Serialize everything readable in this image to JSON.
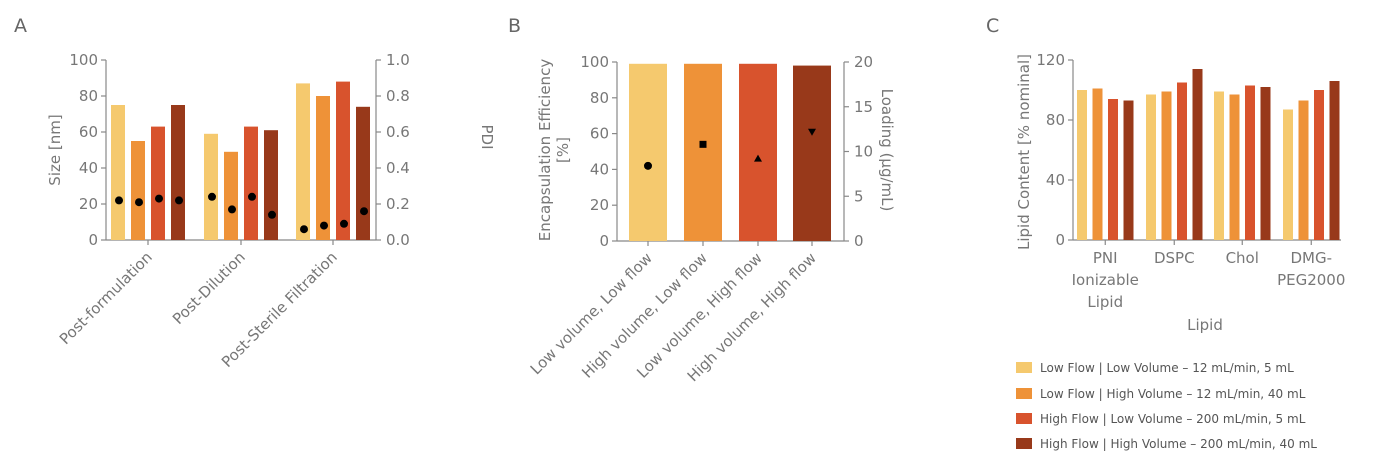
{
  "colors": [
    "#F5C96E",
    "#EE9238",
    "#D8532D",
    "#98391A"
  ],
  "legend": [
    "Low Flow | Low Volume – 12 mL/min, 5 mL",
    "Low Flow | High Volume – 12 mL/min, 40 mL",
    "High Flow | Low Volume – 200 mL/min, 5 mL",
    "High Flow | High Volume – 200 mL/min, 40 mL"
  ],
  "chart_data": [
    {
      "panel": "A",
      "type": "bar",
      "categories": [
        "Post-formulation",
        "Post-Dilution",
        "Post-Sterile Filtration"
      ],
      "ylabel": "Size [nm]",
      "ylim": [
        0,
        100
      ],
      "yticks": [
        "0",
        "20",
        "40",
        "60",
        "80",
        "100"
      ],
      "y2label": "PDI",
      "y2lim": [
        0,
        1.0
      ],
      "y2ticks": [
        "0.0",
        "0.2",
        "0.4",
        "0.6",
        "0.8",
        "1.0"
      ],
      "series": [
        {
          "values": [
            75,
            59,
            87
          ],
          "pdi": [
            0.22,
            0.24,
            0.06
          ]
        },
        {
          "values": [
            55,
            49,
            80
          ],
          "pdi": [
            0.21,
            0.17,
            0.08
          ]
        },
        {
          "values": [
            63,
            63,
            88
          ],
          "pdi": [
            0.23,
            0.24,
            0.09
          ]
        },
        {
          "values": [
            75,
            61,
            74
          ],
          "pdi": [
            0.22,
            0.14,
            0.16
          ]
        }
      ]
    },
    {
      "panel": "B",
      "type": "bar",
      "categories": [
        "Low volume, Low flow",
        "High volume, Low flow",
        "Low volume, High flow",
        "High volume, High flow"
      ],
      "values": [
        99,
        99,
        99,
        98
      ],
      "ylabel": "Encapsulation Efficiency [%]",
      "ylabel_lines": [
        "Encapsulation Efficiency",
        "[%]"
      ],
      "ylim": [
        0,
        100
      ],
      "yticks": [
        "0",
        "20",
        "40",
        "60",
        "80",
        "100"
      ],
      "y2label": "Loading (µg/mL)",
      "y2lim": [
        0,
        20
      ],
      "y2ticks": [
        "0",
        "5",
        "10",
        "15",
        "20"
      ],
      "loading": [
        8.4,
        10.8,
        9.2,
        12.2
      ],
      "markers": [
        "circle",
        "square",
        "triangle-up",
        "triangle-down"
      ]
    },
    {
      "panel": "C",
      "type": "bar",
      "categories": [
        [
          "PNI",
          "Ionizable",
          "Lipid"
        ],
        [
          "DSPC"
        ],
        [
          "Chol"
        ],
        [
          "DMG-",
          "PEG2000"
        ]
      ],
      "xlabel": "Lipid",
      "ylabel": "Lipid Content [% nominal]",
      "ylim": [
        0,
        120
      ],
      "yticks": [
        "0",
        "40",
        "80",
        "120"
      ],
      "series": [
        {
          "values": [
            100,
            97,
            99,
            87
          ]
        },
        {
          "values": [
            101,
            99,
            97,
            93
          ]
        },
        {
          "values": [
            94,
            105,
            103,
            100
          ]
        },
        {
          "values": [
            93,
            114,
            102,
            106
          ]
        }
      ]
    }
  ]
}
